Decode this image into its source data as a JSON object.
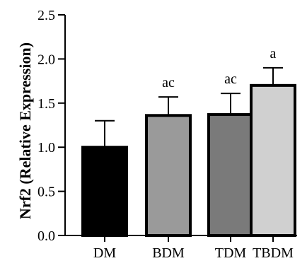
{
  "chart_data": {
    "type": "bar",
    "title": "",
    "xlabel": "",
    "ylabel": "Nrf2 (Relative Expression)",
    "ylim": [
      0.0,
      2.5
    ],
    "yticks": [
      "0.0",
      "0.5",
      "1.0",
      "1.5",
      "2.0",
      "2.5"
    ],
    "grid": false,
    "legend": "none",
    "categories": [
      "DM",
      "BDM",
      "TDM",
      "TBDM"
    ],
    "values": [
      1.0,
      1.36,
      1.37,
      1.7
    ],
    "errors": [
      0.3,
      0.21,
      0.24,
      0.2
    ],
    "significance_labels": [
      "",
      "ac",
      "ac",
      "a"
    ],
    "bar_colors": [
      "#000000",
      "#9a9a9a",
      "#7a7a7a",
      "#d0d0d0"
    ],
    "edge_color": "#000000"
  }
}
